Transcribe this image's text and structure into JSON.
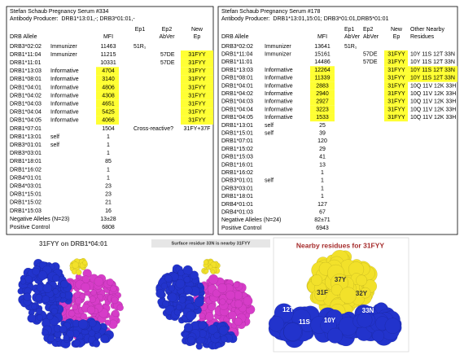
{
  "tables": [
    {
      "title": "Stefan Schaub Pregnancy Serum #334",
      "subtitle": "Antibody Producer:  DRB1*13:01,-; DRB3*01:01,-",
      "header": [
        [
          null,
          null,
          null,
          "Ep1",
          "Ep2",
          "New"
        ],
        [
          "DRB Allele",
          null,
          "MFI",
          null,
          "AbVer",
          "Ep"
        ]
      ],
      "highlight_color": "#ffff33",
      "rows": [
        {
          "cells": [
            "DRB3*02:02",
            "Immunizer",
            "11463",
            "51R₁",
            null,
            null
          ],
          "highlight": []
        },
        {
          "cells": [
            "DRB1*11:04",
            "Immunizer",
            "11215",
            null,
            "57DE",
            "31FYY"
          ],
          "highlight": [
            5
          ]
        },
        {
          "cells": [
            "DRB1*11:01",
            null,
            "10331",
            null,
            "57DE",
            "31FYY"
          ],
          "highlight": [
            5
          ]
        },
        {
          "cells": [
            "DRB1*13:03",
            "Informative",
            "4704",
            null,
            null,
            "31FYY"
          ],
          "highlight": [
            2,
            5
          ]
        },
        {
          "cells": [
            "DRB1*08:01",
            "Informative",
            "3140",
            null,
            null,
            "31FYY"
          ],
          "highlight": [
            2,
            5
          ]
        },
        {
          "cells": [
            "DRB1*04:01",
            "Informative",
            "4806",
            null,
            null,
            "31FYY"
          ],
          "highlight": [
            2,
            5
          ]
        },
        {
          "cells": [
            "DRB1*04:02",
            "Informative",
            "4308",
            null,
            null,
            "31FYY"
          ],
          "highlight": [
            2,
            5
          ]
        },
        {
          "cells": [
            "DRB1*04:03",
            "Informative",
            "4651",
            null,
            null,
            "31FYY"
          ],
          "highlight": [
            2,
            5
          ]
        },
        {
          "cells": [
            "DRB1*04:04",
            "Informative",
            "5425",
            null,
            null,
            "31FYY"
          ],
          "highlight": [
            2,
            5
          ]
        },
        {
          "cells": [
            "DRB1*04:05",
            "Informative",
            "4066",
            null,
            null,
            "31FYY"
          ],
          "highlight": [
            2,
            5
          ]
        },
        {
          "cells": [
            "DRB1*07:01",
            null,
            "1504",
            "Cross-reactive?",
            null,
            "31FY+37F"
          ],
          "highlight": []
        },
        {
          "cells": [
            "DRB1*13:01",
            "self",
            "1",
            null,
            null,
            null
          ],
          "highlight": []
        },
        {
          "cells": [
            "DRB3*01:01",
            "self",
            "1",
            null,
            null,
            null
          ],
          "highlight": []
        },
        {
          "cells": [
            "DRB3*03:01",
            null,
            "1",
            null,
            null,
            null
          ],
          "highlight": []
        },
        {
          "cells": [
            "DRB1*18:01",
            null,
            "85",
            null,
            null,
            null
          ],
          "highlight": []
        },
        {
          "cells": [
            "DRB1*16:02",
            null,
            "1",
            null,
            null,
            null
          ],
          "highlight": []
        },
        {
          "cells": [
            "DRB4*01:01",
            null,
            "1",
            null,
            null,
            null
          ],
          "highlight": []
        },
        {
          "cells": [
            "DRB4*03:01",
            null,
            "23",
            null,
            null,
            null
          ],
          "highlight": []
        },
        {
          "cells": [
            "DRB1*15:01",
            null,
            "23",
            null,
            null,
            null
          ],
          "highlight": []
        },
        {
          "cells": [
            "DRB1*15:02",
            null,
            "21",
            null,
            null,
            null
          ],
          "highlight": []
        },
        {
          "cells": [
            "DRB1*15:03",
            null,
            "16",
            null,
            null,
            null
          ],
          "highlight": []
        },
        {
          "cells": [
            "Negative Alleles (N=23)",
            null,
            "13±28",
            null,
            null,
            null
          ],
          "highlight": []
        },
        {
          "cells": [
            "Positive Control",
            null,
            "6808",
            null,
            null,
            null
          ],
          "highlight": []
        }
      ]
    },
    {
      "title": "Stefan Schaub Pregnancy Serum #178",
      "subtitle": "Antibody Producer:  DRB1*13:01,15:01; DRB3*01:01,DRB5*01:01",
      "header": [
        [
          null,
          null,
          null,
          "Ep1",
          "Ep2",
          "New",
          "Other Nearby"
        ],
        [
          "DRB Allele",
          null,
          "MFI",
          "AbVer",
          "AbVer",
          "Ep",
          "Residues"
        ]
      ],
      "highlight_color": "#ffff33",
      "rows": [
        {
          "cells": [
            "DRB3*02:02",
            "Immunizer",
            "13641",
            "51R₁",
            null,
            null,
            null
          ],
          "highlight": []
        },
        {
          "cells": [
            "DRB1*11:04",
            "Immunizer",
            "15161",
            null,
            "57DE",
            "31FYY",
            "10Y 11S 12T 33N"
          ],
          "highlight": [
            5
          ]
        },
        {
          "cells": [
            "DRB1*11:01",
            null,
            "14486",
            null,
            "57DE",
            "31FYY",
            "10Y 11S 12T 33N"
          ],
          "highlight": [
            5
          ]
        },
        {
          "cells": [
            "DRB1*13:03",
            "Informative",
            "12264",
            null,
            null,
            "31FYY",
            "10Y 11S 12T 33N"
          ],
          "highlight": [
            2,
            5,
            6
          ]
        },
        {
          "cells": [
            "DRB1*08:01",
            "Informative",
            "11339",
            null,
            null,
            "31FYY",
            "10Y 11S 12T 33N"
          ],
          "highlight": [
            2,
            5,
            6
          ]
        },
        {
          "cells": [
            "DRB1*04:01",
            "Informative",
            "2883",
            null,
            null,
            "31FYY",
            "10Q 11V 12K 33H"
          ],
          "highlight": [
            2,
            5
          ]
        },
        {
          "cells": [
            "DRB1*04:02",
            "Informative",
            "2940",
            null,
            null,
            "31FYY",
            "10Q 11V 12K 33H"
          ],
          "highlight": [
            2,
            5
          ]
        },
        {
          "cells": [
            "DRB1*04:03",
            "Informative",
            "2927",
            null,
            null,
            "31FYY",
            "10Q 11V 12K 33H"
          ],
          "highlight": [
            2,
            5
          ]
        },
        {
          "cells": [
            "DRB1*04:04",
            "Informative",
            "3223",
            null,
            null,
            "31FYY",
            "10Q 11V 12K 33H"
          ],
          "highlight": [
            2,
            5
          ]
        },
        {
          "cells": [
            "DRB1*04:05",
            "Informative",
            "1533",
            null,
            null,
            "31FYY",
            "10Q 11V 12K 33H"
          ],
          "highlight": [
            2,
            5
          ]
        },
        {
          "cells": [
            "DRB1*13:01",
            "self",
            "25",
            null,
            null,
            null,
            null
          ],
          "highlight": []
        },
        {
          "cells": [
            "DRB1*15:01",
            "self",
            "39",
            null,
            null,
            null,
            null
          ],
          "highlight": []
        },
        {
          "cells": [
            "DRB1*07:01",
            null,
            "120",
            null,
            null,
            null,
            null
          ],
          "highlight": []
        },
        {
          "cells": [
            "DRB1*15:02",
            null,
            "29",
            null,
            null,
            null,
            null
          ],
          "highlight": []
        },
        {
          "cells": [
            "DRB1*15:03",
            null,
            "41",
            null,
            null,
            null,
            null
          ],
          "highlight": []
        },
        {
          "cells": [
            "DRB1*16:01",
            null,
            "13",
            null,
            null,
            null,
            null
          ],
          "highlight": []
        },
        {
          "cells": [
            "DRB1*16:02",
            null,
            "1",
            null,
            null,
            null,
            null
          ],
          "highlight": []
        },
        {
          "cells": [
            "DRB3*01:01",
            "self",
            "1",
            null,
            null,
            null,
            null
          ],
          "highlight": []
        },
        {
          "cells": [
            "DRB3*03:01",
            null,
            "1",
            null,
            null,
            null,
            null
          ],
          "highlight": []
        },
        {
          "cells": [
            "DRB1*18:01",
            null,
            "1",
            null,
            null,
            null,
            null
          ],
          "highlight": []
        },
        {
          "cells": [
            "DRB4*01:01",
            null,
            "127",
            null,
            null,
            null,
            null
          ],
          "highlight": []
        },
        {
          "cells": [
            "DRB4*01:03",
            null,
            "67",
            null,
            null,
            null,
            null
          ],
          "highlight": []
        },
        {
          "cells": [
            "Negative Alleles (N=24)",
            null,
            "82±71",
            null,
            null,
            null,
            null
          ],
          "highlight": []
        },
        {
          "cells": [
            "Positive Control",
            null,
            "6943",
            null,
            null,
            null,
            null
          ],
          "highlight": []
        }
      ]
    }
  ],
  "images": [
    {
      "caption": "31FYY on DRB1*04:01"
    },
    {
      "caption": "Surface residue 33N is nearby 31FYY"
    },
    {
      "caption": "Nearby residues for 31FYY",
      "labels": [
        "37Y",
        "31F",
        "32Y",
        "12T",
        "11S",
        "10Y",
        "33N"
      ]
    }
  ]
}
